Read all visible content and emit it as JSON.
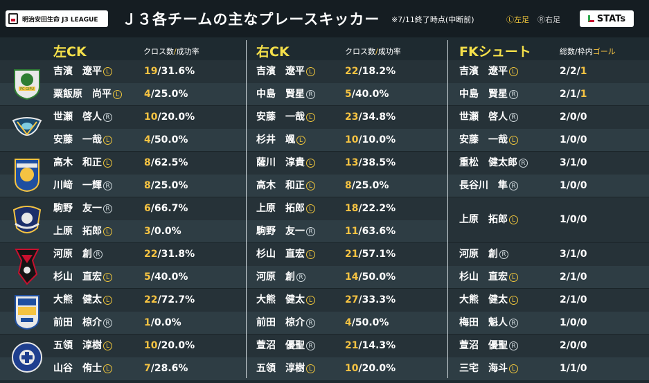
{
  "header": {
    "logo_text": "明治安田生命 J3 LEAGUE",
    "title": "Ｊ３各チームの主なプレースキッカー",
    "note": "※7/11終了時点(中断前)",
    "legend_left": "Ⓛ左足",
    "legend_right": "Ⓡ右足",
    "stats_label": "STATs"
  },
  "columns": {
    "left_ck": {
      "title": "左CK",
      "sub1": "クロス数",
      "slash": "/",
      "sub2": "成功率"
    },
    "right_ck": {
      "title": "右CK",
      "sub1": "クロス数",
      "slash": "/",
      "sub2": "成功率"
    },
    "fk": {
      "title": "FKシュート",
      "sub1": "総数/枠内",
      "slash": "/",
      "sub2": "ゴール"
    }
  },
  "teams": [
    {
      "crest": "fc-gifu-crest",
      "rows": [
        {
          "lck_name": "吉濱　遼平",
          "lck_foot": "Ⓛ",
          "lck_a": "19",
          "lck_b": "31.6%",
          "rck_name": "吉濱　遼平",
          "rck_foot": "Ⓛ",
          "rck_a": "22",
          "rck_b": "18.2%",
          "fk_name": "吉濱　遼平",
          "fk_foot": "Ⓛ",
          "fk_a": "2/2/",
          "fk_g": "1"
        },
        {
          "lck_name": "粟飯原　尚平",
          "lck_foot": "Ⓛ",
          "lck_a": "4",
          "lck_b": "25.0%",
          "rck_name": "中島　賢星",
          "rck_foot": "Ⓡ",
          "rck_a": "5",
          "rck_b": "40.0%",
          "fk_name": "中島　賢星",
          "fk_foot": "Ⓡ",
          "fk_a": "2/1/",
          "fk_g": "1"
        }
      ]
    },
    {
      "crest": "team2-crest",
      "rows": [
        {
          "lck_name": "世瀬　啓人",
          "lck_foot": "Ⓡ",
          "lck_a": "10",
          "lck_b": "20.0%",
          "rck_name": "安藤　一哉",
          "rck_foot": "Ⓛ",
          "rck_a": "23",
          "rck_b": "34.8%",
          "fk_name": "世瀬　啓人",
          "fk_foot": "Ⓡ",
          "fk_a": "2/0/",
          "fk_g": "0"
        },
        {
          "lck_name": "安藤　一哉",
          "lck_foot": "Ⓛ",
          "lck_a": "4",
          "lck_b": "50.0%",
          "rck_name": "杉井　颯",
          "rck_foot": "Ⓛ",
          "rck_a": "10",
          "rck_b": "10.0%",
          "fk_name": "安藤　一哉",
          "fk_foot": "Ⓛ",
          "fk_a": "1/0/",
          "fk_g": "0"
        }
      ]
    },
    {
      "crest": "team3-crest",
      "rows": [
        {
          "lck_name": "高木　和正",
          "lck_foot": "Ⓛ",
          "lck_a": "8",
          "lck_b": "62.5%",
          "rck_name": "薩川　淳貴",
          "rck_foot": "Ⓛ",
          "rck_a": "13",
          "rck_b": "38.5%",
          "fk_name": "重松　健太郎",
          "fk_foot": "Ⓡ",
          "fk_a": "3/1/",
          "fk_g": "0"
        },
        {
          "lck_name": "川﨑　一輝",
          "lck_foot": "Ⓡ",
          "lck_a": "8",
          "lck_b": "25.0%",
          "rck_name": "高木　和正",
          "rck_foot": "Ⓛ",
          "rck_a": "8",
          "rck_b": "25.0%",
          "fk_name": "長谷川　隼",
          "fk_foot": "Ⓡ",
          "fk_a": "1/0/",
          "fk_g": "0"
        }
      ]
    },
    {
      "crest": "team4-crest",
      "rows": [
        {
          "lck_name": "駒野　友一",
          "lck_foot": "Ⓡ",
          "lck_a": "6",
          "lck_b": "66.7%",
          "rck_name": "上原　拓郎",
          "rck_foot": "Ⓛ",
          "rck_a": "18",
          "rck_b": "22.2%"
        },
        {
          "lck_name": "上原　拓郎",
          "lck_foot": "Ⓛ",
          "lck_a": "3",
          "lck_b": "0.0%",
          "rck_name": "駒野　友一",
          "rck_foot": "Ⓡ",
          "rck_a": "11",
          "rck_b": "63.6%"
        }
      ],
      "fk_merged": {
        "fk_name": "上原　拓郎",
        "fk_foot": "Ⓛ",
        "fk_a": "1/0/",
        "fk_g": "0"
      }
    },
    {
      "crest": "team5-crest",
      "rows": [
        {
          "lck_name": "河原　創",
          "lck_foot": "Ⓡ",
          "lck_a": "22",
          "lck_b": "31.8%",
          "rck_name": "杉山　直宏",
          "rck_foot": "Ⓛ",
          "rck_a": "21",
          "rck_b": "57.1%",
          "fk_name": "河原　創",
          "fk_foot": "Ⓡ",
          "fk_a": "3/1/",
          "fk_g": "0"
        },
        {
          "lck_name": "杉山　直宏",
          "lck_foot": "Ⓛ",
          "lck_a": "5",
          "lck_b": "40.0%",
          "rck_name": "河原　創",
          "rck_foot": "Ⓡ",
          "rck_a": "14",
          "rck_b": "50.0%",
          "fk_name": "杉山　直宏",
          "fk_foot": "Ⓛ",
          "fk_a": "2/1/",
          "fk_g": "0"
        }
      ]
    },
    {
      "crest": "team6-crest",
      "rows": [
        {
          "lck_name": "大熊　健太",
          "lck_foot": "Ⓛ",
          "lck_a": "22",
          "lck_b": "72.7%",
          "rck_name": "大熊　健太",
          "rck_foot": "Ⓛ",
          "rck_a": "27",
          "rck_b": "33.3%",
          "fk_name": "大熊　健太",
          "fk_foot": "Ⓛ",
          "fk_a": "2/1/",
          "fk_g": "0"
        },
        {
          "lck_name": "前田　椋介",
          "lck_foot": "Ⓡ",
          "lck_a": "1",
          "lck_b": "0.0%",
          "rck_name": "前田　椋介",
          "rck_foot": "Ⓡ",
          "rck_a": "4",
          "rck_b": "50.0%",
          "fk_name": "梅田　魁人",
          "fk_foot": "Ⓡ",
          "fk_a": "1/0/",
          "fk_g": "0"
        }
      ]
    },
    {
      "crest": "kagoshima-united-crest",
      "rows": [
        {
          "lck_name": "五領　淳樹",
          "lck_foot": "Ⓛ",
          "lck_a": "10",
          "lck_b": "20.0%",
          "rck_name": "萱沼　優聖",
          "rck_foot": "Ⓡ",
          "rck_a": "21",
          "rck_b": "14.3%",
          "fk_name": "萱沼　優聖",
          "fk_foot": "Ⓡ",
          "fk_a": "2/0/",
          "fk_g": "0"
        },
        {
          "lck_name": "山谷　侑士",
          "lck_foot": "Ⓛ",
          "lck_a": "7",
          "lck_b": "28.6%",
          "rck_name": "五領　淳樹",
          "rck_foot": "Ⓛ",
          "rck_a": "10",
          "rck_b": "20.0%",
          "fk_name": "三宅　海斗",
          "fk_foot": "Ⓛ",
          "fk_a": "1/1/",
          "fk_g": "0"
        }
      ]
    }
  ]
}
